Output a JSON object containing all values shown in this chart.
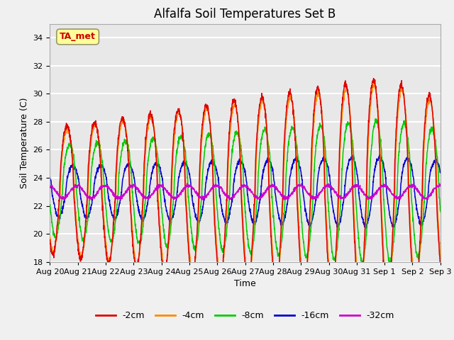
{
  "title": "Alfalfa Soil Temperatures Set B",
  "xlabel": "Time",
  "ylabel": "Soil Temperature (C)",
  "ylim": [
    18,
    35
  ],
  "yticks": [
    18,
    20,
    22,
    24,
    26,
    28,
    30,
    32,
    34
  ],
  "n_days": 15,
  "points_per_day": 144,
  "colors": {
    "-2cm": "#dd0000",
    "-4cm": "#ff8800",
    "-8cm": "#00cc00",
    "-16cm": "#0000cc",
    "-32cm": "#cc00cc"
  },
  "legend_labels": [
    "-2cm",
    "-4cm",
    "-8cm",
    "-16cm",
    "-32cm"
  ],
  "ta_met_label": "TA_met",
  "ta_met_color": "#cc0000",
  "ta_met_bg": "#ffff99",
  "plot_bg": "#e8e8e8",
  "grid_color": "#ffffff",
  "fig_bg": "#f0f0f0",
  "title_fontsize": 12,
  "label_fontsize": 9,
  "tick_fontsize": 8
}
